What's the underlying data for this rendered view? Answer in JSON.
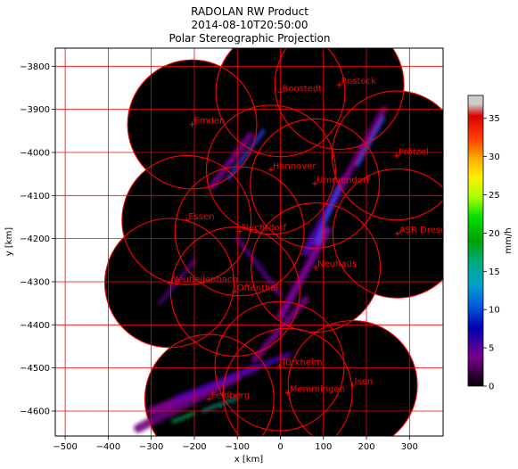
{
  "chart_data": {
    "type": "heatmap",
    "title_lines": [
      "RADOLAN RW Product",
      "2014-08-10T20:50:00",
      "Polar Stereographic Projection"
    ],
    "xlabel": "x [km]",
    "ylabel": "y [km]",
    "xlim": [
      -523,
      378
    ],
    "ylim": [
      -4658,
      -3758
    ],
    "xticks": [
      -500,
      -400,
      -300,
      -200,
      -100,
      0,
      100,
      200,
      300
    ],
    "yticks": [
      -3800,
      -3900,
      -4000,
      -4100,
      -4200,
      -4300,
      -4400,
      -4500,
      -4600
    ],
    "grid": true,
    "grid_color": "#ff0000",
    "colorbar": {
      "label": "mm/h",
      "min": 0,
      "max": 38,
      "ticks": [
        0,
        5,
        10,
        15,
        20,
        25,
        30,
        35
      ],
      "colormap": "nipy_spectral"
    },
    "radar_radius_km": 150,
    "radars": [
      {
        "name": "Boostedt",
        "x": 0,
        "y": -3860
      },
      {
        "name": "Rostock",
        "x": 137,
        "y": -3843
      },
      {
        "name": "Emden",
        "x": -205,
        "y": -3935
      },
      {
        "name": "Hannover",
        "x": -22,
        "y": -4040
      },
      {
        "name": "Prötzel",
        "x": 270,
        "y": -4007
      },
      {
        "name": "Ummendorf",
        "x": 80,
        "y": -4072
      },
      {
        "name": "Essen",
        "x": -218,
        "y": -4157
      },
      {
        "name": "ASR Dresden",
        "x": 272,
        "y": -4188
      },
      {
        "name": "Flechtdorf",
        "x": -95,
        "y": -4183
      },
      {
        "name": "Neuhaus",
        "x": 82,
        "y": -4267
      },
      {
        "name": "Neuheilenbach",
        "x": -258,
        "y": -4303
      },
      {
        "name": "Offenthal",
        "x": -105,
        "y": -4323
      },
      {
        "name": "Türkheim",
        "x": -2,
        "y": -4496
      },
      {
        "name": "Isen",
        "x": 168,
        "y": -4540
      },
      {
        "name": "Memmingen",
        "x": 17,
        "y": -4558
      },
      {
        "name": "Feldberg",
        "x": -165,
        "y": -4572
      }
    ]
  }
}
